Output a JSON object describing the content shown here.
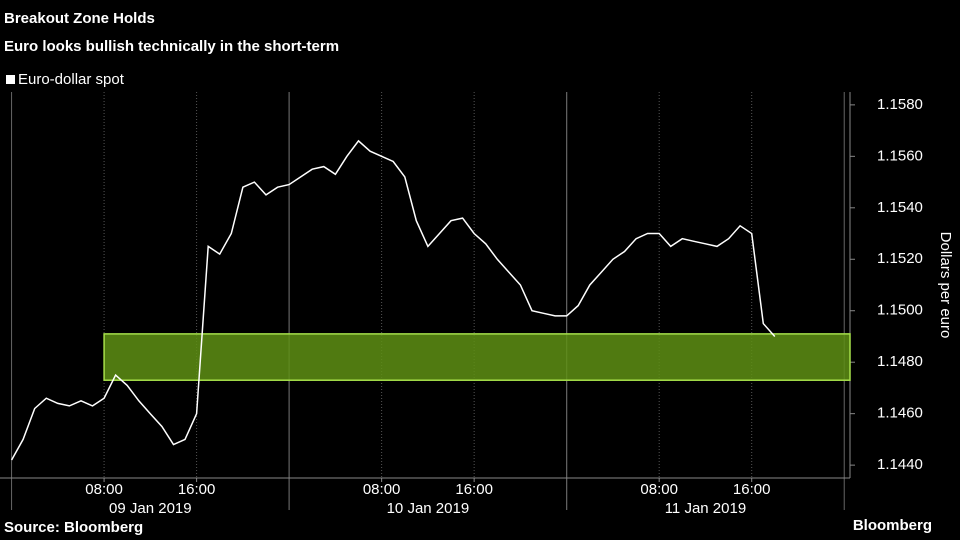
{
  "chart_data": {
    "type": "line",
    "title": "Breakout Zone Holds",
    "subtitle": "Euro looks bullish technically in the short-term",
    "source": "Source: Bloomberg",
    "brand": "Bloomberg",
    "y_label": "Dollars per euro",
    "x": [
      "2019-01-09T00:00",
      "2019-01-09T01:00",
      "2019-01-09T02:00",
      "2019-01-09T03:00",
      "2019-01-09T04:00",
      "2019-01-09T05:00",
      "2019-01-09T06:00",
      "2019-01-09T07:00",
      "2019-01-09T08:00",
      "2019-01-09T09:00",
      "2019-01-09T10:00",
      "2019-01-09T11:00",
      "2019-01-09T12:00",
      "2019-01-09T13:00",
      "2019-01-09T14:00",
      "2019-01-09T15:00",
      "2019-01-09T16:00",
      "2019-01-09T17:00",
      "2019-01-09T18:00",
      "2019-01-09T19:00",
      "2019-01-09T20:00",
      "2019-01-09T21:00",
      "2019-01-09T22:00",
      "2019-01-09T23:00",
      "2019-01-10T00:00",
      "2019-01-10T01:00",
      "2019-01-10T02:00",
      "2019-01-10T03:00",
      "2019-01-10T04:00",
      "2019-01-10T05:00",
      "2019-01-10T06:00",
      "2019-01-10T07:00",
      "2019-01-10T08:00",
      "2019-01-10T09:00",
      "2019-01-10T10:00",
      "2019-01-10T11:00",
      "2019-01-10T12:00",
      "2019-01-10T13:00",
      "2019-01-10T14:00",
      "2019-01-10T15:00",
      "2019-01-10T16:00",
      "2019-01-10T17:00",
      "2019-01-10T18:00",
      "2019-01-10T19:00",
      "2019-01-10T20:00",
      "2019-01-10T21:00",
      "2019-01-10T22:00",
      "2019-01-10T23:00",
      "2019-01-11T00:00",
      "2019-01-11T01:00",
      "2019-01-11T02:00",
      "2019-01-11T03:00",
      "2019-01-11T04:00",
      "2019-01-11T05:00",
      "2019-01-11T06:00",
      "2019-01-11T07:00",
      "2019-01-11T08:00",
      "2019-01-11T09:00",
      "2019-01-11T10:00",
      "2019-01-11T11:00",
      "2019-01-11T12:00",
      "2019-01-11T13:00",
      "2019-01-11T14:00",
      "2019-01-11T15:00",
      "2019-01-11T16:00",
      "2019-01-11T17:00",
      "2019-01-11T18:00"
    ],
    "series": [
      {
        "name": "Euro-dollar spot",
        "color": "#ffffff",
        "values": [
          1.1442,
          1.145,
          1.1462,
          1.1466,
          1.1464,
          1.1463,
          1.1465,
          1.1463,
          1.1466,
          1.1475,
          1.1471,
          1.1465,
          1.146,
          1.1455,
          1.1448,
          1.145,
          1.146,
          1.1525,
          1.1522,
          1.153,
          1.1548,
          1.155,
          1.1545,
          1.1548,
          1.1549,
          1.1552,
          1.1555,
          1.1556,
          1.1553,
          1.156,
          1.1566,
          1.1562,
          1.156,
          1.1558,
          1.1552,
          1.1535,
          1.1525,
          1.153,
          1.1535,
          1.1536,
          1.153,
          1.1526,
          1.152,
          1.1515,
          1.151,
          1.15,
          1.1499,
          1.1498,
          1.1498,
          1.1502,
          1.151,
          1.1515,
          1.152,
          1.1523,
          1.1528,
          1.153,
          1.153,
          1.1525,
          1.1528,
          1.1527,
          1.1526,
          1.1525,
          1.1528,
          1.1533,
          1.153,
          1.1495,
          1.149
        ]
      }
    ],
    "highlight": {
      "ylim": [
        1.1473,
        1.1491
      ],
      "xlim": [
        "2019-01-09T08:00",
        "2019-01-12T00:30"
      ],
      "color": "#5e8f14",
      "border": "#a6e04a"
    },
    "xlim": [
      "2019-01-08T23:00",
      "2019-01-12T00:30"
    ],
    "xticks": [
      {
        "value": "2019-01-09T08:00",
        "label": "08:00"
      },
      {
        "value": "2019-01-09T16:00",
        "label": "16:00"
      },
      {
        "value": "2019-01-10T08:00",
        "label": "08:00"
      },
      {
        "value": "2019-01-10T16:00",
        "label": "16:00"
      },
      {
        "value": "2019-01-11T08:00",
        "label": "08:00"
      },
      {
        "value": "2019-01-11T16:00",
        "label": "16:00"
      }
    ],
    "days": [
      {
        "value": "2019-01-09",
        "label": "09 Jan 2019"
      },
      {
        "value": "2019-01-10",
        "label": "10 Jan 2019"
      },
      {
        "value": "2019-01-11",
        "label": "11 Jan 2019"
      }
    ],
    "ylim": [
      1.1435,
      1.1585
    ],
    "yticks": [
      {
        "value": 1.144,
        "label": "1.1440"
      },
      {
        "value": 1.146,
        "label": "1.1460"
      },
      {
        "value": 1.148,
        "label": "1.1480"
      },
      {
        "value": 1.15,
        "label": "1.1500"
      },
      {
        "value": 1.152,
        "label": "1.1520"
      },
      {
        "value": 1.154,
        "label": "1.1540"
      },
      {
        "value": 1.156,
        "label": "1.1560"
      },
      {
        "value": 1.158,
        "label": "1.1580"
      }
    ],
    "grid": "x"
  }
}
